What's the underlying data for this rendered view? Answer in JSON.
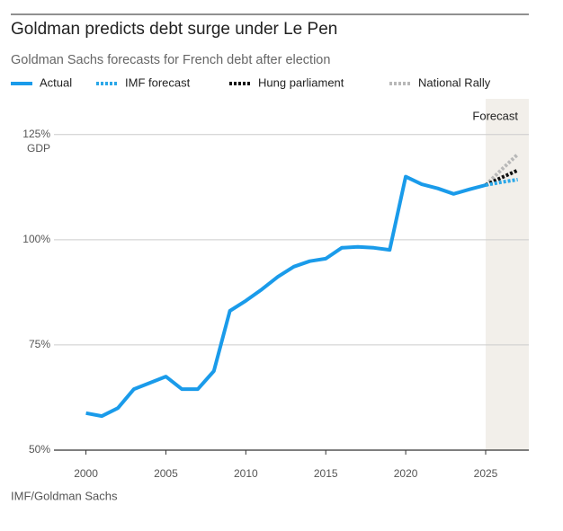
{
  "chart_data": {
    "type": "line",
    "title": "Goldman predicts debt surge under Le Pen",
    "subtitle": "Goldman Sachs forecasts for French debt after election",
    "source": "IMF/Goldman Sachs",
    "y_unit_label": "GDP",
    "forecast_label": "Forecast",
    "forecast_start": 2025,
    "x": [
      2000,
      2001,
      2002,
      2003,
      2004,
      2005,
      2006,
      2007,
      2008,
      2009,
      2010,
      2011,
      2012,
      2013,
      2014,
      2015,
      2016,
      2017,
      2018,
      2019,
      2020,
      2021,
      2022,
      2023,
      2024,
      2025,
      2026,
      2027
    ],
    "series": [
      {
        "name": "Actual",
        "color": "#1a9bea",
        "style": "solid",
        "values": [
          58.8,
          58.1,
          60.0,
          64.5,
          66.0,
          67.5,
          64.5,
          64.5,
          68.8,
          83.1,
          85.5,
          88.2,
          91.2,
          93.6,
          94.9,
          95.5,
          98.1,
          98.3,
          98.1,
          97.6,
          115.0,
          113.2,
          112.2,
          110.9,
          112.0,
          113.0,
          null,
          null
        ]
      },
      {
        "name": "IMF forecast",
        "color": "#2aa7e8",
        "style": "dotted",
        "values": [
          null,
          null,
          null,
          null,
          null,
          null,
          null,
          null,
          null,
          null,
          null,
          null,
          null,
          null,
          null,
          null,
          null,
          null,
          null,
          null,
          null,
          null,
          null,
          null,
          null,
          113.0,
          113.7,
          114.3
        ]
      },
      {
        "name": "Hung parliament",
        "color": "#111111",
        "style": "dotted",
        "values": [
          null,
          null,
          null,
          null,
          null,
          null,
          null,
          null,
          null,
          null,
          null,
          null,
          null,
          null,
          null,
          null,
          null,
          null,
          null,
          null,
          null,
          null,
          null,
          null,
          null,
          113.0,
          114.8,
          116.5
        ]
      },
      {
        "name": "National Rally",
        "color": "#b8b8b8",
        "style": "dotted",
        "values": [
          null,
          null,
          null,
          null,
          null,
          null,
          null,
          null,
          null,
          null,
          null,
          null,
          null,
          null,
          null,
          null,
          null,
          null,
          null,
          null,
          null,
          null,
          null,
          null,
          null,
          113.0,
          116.7,
          120.3
        ]
      }
    ],
    "xlim": [
      1998,
      2027.7
    ],
    "xticks": [
      2000,
      2005,
      2010,
      2015,
      2020,
      2025
    ],
    "ylim": [
      50,
      133.5
    ],
    "yticks": [
      {
        "value": 50,
        "label": "50%"
      },
      {
        "value": 75,
        "label": "75%"
      },
      {
        "value": 100,
        "label": "100%"
      },
      {
        "value": 125,
        "label": "125%"
      }
    ],
    "grid": true
  }
}
